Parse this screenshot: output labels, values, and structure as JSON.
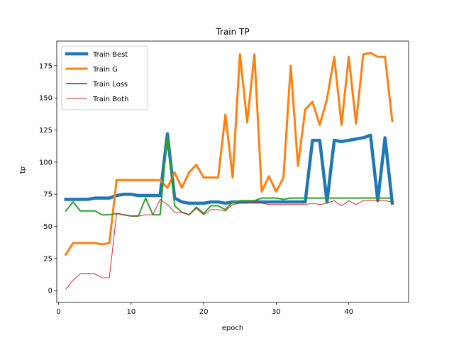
{
  "chart_data": {
    "type": "line",
    "title": "Train TP",
    "xlabel": "epoch",
    "ylabel": "tp",
    "xlim": [
      -0.25,
      48.25
    ],
    "ylim": [
      -9.25,
      194.25
    ],
    "xticks": [
      0,
      10,
      20,
      30,
      40
    ],
    "yticks": [
      0,
      25,
      50,
      75,
      100,
      125,
      150,
      175
    ],
    "grid": false,
    "legend_position": "upper-left",
    "x": [
      1,
      2,
      3,
      4,
      5,
      6,
      7,
      8,
      9,
      10,
      11,
      12,
      13,
      14,
      15,
      16,
      17,
      18,
      19,
      20,
      21,
      22,
      23,
      24,
      25,
      26,
      27,
      28,
      29,
      30,
      31,
      32,
      33,
      34,
      35,
      36,
      37,
      38,
      39,
      40,
      41,
      42,
      43,
      44,
      45,
      46
    ],
    "series": [
      {
        "name": "Train Best",
        "color": "#1f77b4",
        "width": 4.5,
        "values": [
          71,
          71,
          71,
          71,
          72,
          72,
          72,
          74,
          75,
          75,
          74,
          74,
          74,
          74,
          122,
          72,
          69,
          68,
          68,
          68,
          69,
          69,
          68,
          69,
          69,
          69,
          69,
          69,
          69,
          69,
          69,
          69,
          69,
          69,
          117,
          117,
          69,
          117,
          116,
          117,
          118,
          119,
          121,
          70,
          119,
          68
        ]
      },
      {
        "name": "Train G",
        "color": "#ff7f0e",
        "width": 3,
        "values": [
          28,
          37,
          37,
          37,
          37,
          36,
          37,
          86,
          86,
          86,
          86,
          86,
          86,
          86,
          80,
          92,
          80,
          92,
          98,
          88,
          88,
          88,
          137,
          88,
          184,
          131,
          184,
          77,
          89,
          77,
          88,
          175,
          97,
          141,
          147,
          129,
          149,
          182,
          129,
          182,
          130,
          184,
          185,
          182,
          182,
          132
        ]
      },
      {
        "name": "Train Loss",
        "color": "#2ca02c",
        "width": 2,
        "values": [
          62,
          69,
          62,
          62,
          62,
          59,
          59,
          60,
          59,
          58,
          58,
          72,
          59,
          59,
          121,
          66,
          61,
          59,
          65,
          60,
          66,
          66,
          63,
          69,
          70,
          70,
          70,
          72,
          72,
          72,
          71,
          72,
          72,
          72,
          72,
          72,
          72,
          72,
          72,
          72,
          72,
          72,
          72,
          72,
          72,
          72
        ]
      },
      {
        "name": "Train Both",
        "color": "#d62728",
        "width": 1,
        "values": [
          1,
          8,
          13,
          13,
          13,
          10,
          10,
          60,
          59,
          58,
          58,
          59,
          59,
          71,
          67,
          61,
          61,
          59,
          64,
          59,
          63,
          63,
          62,
          67,
          68,
          68,
          69,
          68,
          67,
          67,
          67,
          67,
          67,
          67,
          68,
          67,
          68,
          70,
          66,
          70,
          67,
          70,
          70,
          70,
          70,
          69
        ]
      }
    ]
  }
}
